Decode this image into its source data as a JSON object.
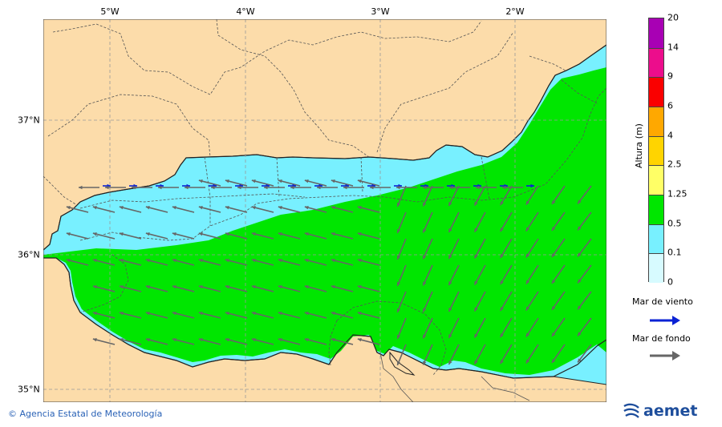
{
  "map": {
    "longitude_ticks": [
      "5°W",
      "4°W",
      "3°W",
      "2°W"
    ],
    "latitude_ticks": [
      "37°N",
      "36°N",
      "35°N"
    ]
  },
  "legend": {
    "title": "Altura (m)",
    "ticks": [
      "20",
      "14",
      "9",
      "6",
      "4",
      "2.5",
      "1.25",
      "0.5",
      "0.1",
      "0"
    ],
    "colors": [
      "#a800b4",
      "#ec0d8c",
      "#fa0000",
      "#ffa800",
      "#ffd400",
      "#ffff66",
      "#00e600",
      "#78f0ff",
      "#d7fbff"
    ]
  },
  "arrows": {
    "wind_label": "Mar de viento",
    "wind_color": "#0a22d4",
    "swell_label": "Mar de fondo",
    "swell_color": "#666666"
  },
  "credit": "Agencia Estatal de Meteorología",
  "logo": {
    "text": "aemet"
  }
}
